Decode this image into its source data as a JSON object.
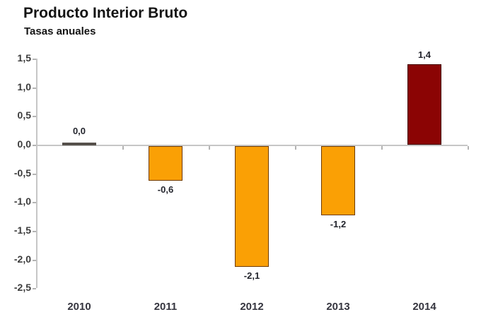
{
  "chart_data": {
    "type": "bar",
    "title": "Producto Interior Bruto",
    "subtitle": "Tasas anuales",
    "categories": [
      "2010",
      "2011",
      "2012",
      "2013",
      "2014"
    ],
    "values": [
      0.0,
      -0.6,
      -2.1,
      -1.2,
      1.4
    ],
    "value_labels": [
      "0,0",
      "-0,6",
      "-2,1",
      "-1,2",
      "1,4"
    ],
    "bar_colors": [
      "#55504a",
      "#FAA005",
      "#FAA005",
      "#FAA005",
      "#8B0404"
    ],
    "bar_border_colors": [
      "#55504a",
      "#6e3a02",
      "#6e3a02",
      "#6e3a02",
      "#420301"
    ],
    "y_tick_labels": [
      "1,5",
      "1,0",
      "0,5",
      "0,0",
      "-0,5",
      "-1,0",
      "-1,5",
      "-2,0",
      "-2,5"
    ],
    "y_tick_values": [
      1.5,
      1.0,
      0.5,
      0.0,
      -0.5,
      -1.0,
      -1.5,
      -2.0,
      -2.5
    ],
    "ylim": [
      -2.5,
      1.5
    ],
    "xlabel": "",
    "ylabel": "",
    "grid": false,
    "legend": false,
    "axis_color": "#c6c6c6",
    "tick_color": "#b3b3b3",
    "label_text_color": "#23252d"
  }
}
